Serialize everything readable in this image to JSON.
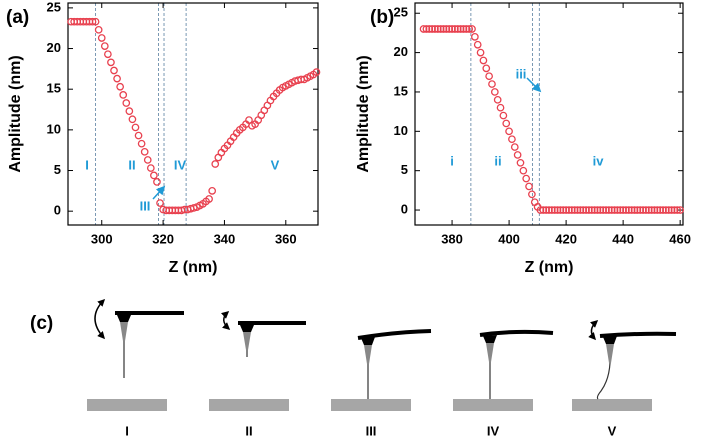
{
  "chart_data": [
    {
      "type": "scatter",
      "panel": "(a)",
      "x_label": "Z (nm)",
      "y_label": "Amplitude (nm)",
      "color": "#e8414f",
      "x": [
        290,
        291,
        292,
        293,
        294,
        295,
        296,
        297,
        298,
        299,
        300,
        301,
        302,
        303,
        304,
        305,
        306,
        307,
        308,
        309,
        310,
        311,
        312,
        313,
        314,
        315,
        316,
        317,
        318,
        319,
        320,
        321,
        322,
        323,
        324,
        325,
        326,
        327,
        328,
        329,
        330,
        331,
        332,
        333,
        334,
        335,
        336,
        337,
        338,
        339,
        340,
        341,
        342,
        343,
        344,
        345,
        346,
        347,
        348,
        349,
        350,
        351,
        352,
        353,
        354,
        355,
        356,
        357,
        358,
        359,
        360,
        361,
        362,
        363,
        364,
        365,
        366,
        367,
        368,
        369,
        370
      ],
      "values": [
        23.3,
        23.3,
        23.3,
        23.3,
        23.3,
        23.3,
        23.3,
        23.3,
        23.3,
        22.3,
        21.3,
        20.3,
        19.3,
        18.3,
        17.3,
        16.3,
        15.3,
        14.3,
        13.3,
        12.3,
        11.3,
        10.3,
        9.3,
        8.3,
        7.3,
        6.3,
        5.3,
        4.4,
        3.6,
        1.0,
        0.2,
        0.1,
        0.1,
        0.1,
        0.1,
        0.1,
        0.1,
        0.2,
        0.2,
        0.3,
        0.4,
        0.5,
        0.7,
        0.9,
        1.2,
        1.5,
        2.5,
        5.8,
        6.6,
        7.2,
        7.7,
        8.1,
        8.6,
        9.1,
        9.6,
        10.0,
        10.3,
        10.7,
        11.2,
        10.5,
        10.7,
        11.2,
        11.8,
        12.4,
        13.0,
        13.6,
        14.1,
        14.5,
        14.9,
        15.2,
        15.4,
        15.6,
        15.8,
        16.0,
        16.1,
        16.2,
        16.2,
        16.4,
        16.6,
        16.8,
        17.1
      ],
      "xlim": [
        289,
        370.5
      ],
      "ylim": [
        -1.7,
        25.6
      ],
      "xticks": [
        300,
        320,
        340,
        360
      ],
      "yticks": [
        0,
        5,
        10,
        15,
        20,
        25
      ],
      "vlines": [
        298,
        318.5,
        320.3,
        327.5
      ],
      "region_labels": [
        "I",
        "II",
        "III",
        "IV",
        "V"
      ]
    },
    {
      "type": "scatter",
      "panel": "(b)",
      "x_label": "Z (nm)",
      "y_label": "Amplitude (nm)",
      "color": "#e8414f",
      "x": [
        370,
        371,
        372,
        373,
        374,
        375,
        376,
        377,
        378,
        379,
        380,
        381,
        382,
        383,
        384,
        385,
        386,
        387,
        388,
        389,
        390,
        391,
        392,
        393,
        394,
        395,
        396,
        397,
        398,
        399,
        400,
        401,
        402,
        403,
        404,
        405,
        406,
        407,
        408,
        409,
        410,
        411,
        412,
        413,
        414,
        415,
        416,
        417,
        418,
        419,
        420,
        421,
        422,
        423,
        424,
        425,
        426,
        427,
        428,
        429,
        430,
        431,
        432,
        433,
        434,
        435,
        436,
        437,
        438,
        439,
        440,
        441,
        442,
        443,
        444,
        445,
        446,
        447,
        448,
        449,
        450,
        451,
        452,
        453,
        454,
        455,
        456,
        457,
        458,
        459,
        460
      ],
      "values": [
        23.0,
        23.0,
        23.0,
        23.0,
        23.0,
        23.0,
        23.0,
        23.0,
        23.0,
        23.0,
        23.0,
        23.0,
        23.0,
        23.0,
        23.0,
        23.0,
        23.0,
        23.0,
        22.0,
        21.0,
        20.0,
        19.0,
        18.0,
        17.0,
        16.0,
        15.0,
        14.0,
        13.0,
        12.0,
        11.0,
        10.0,
        9.0,
        8.0,
        7.0,
        6.0,
        5.0,
        4.0,
        3.0,
        2.0,
        1.0,
        0.4,
        0,
        0,
        0,
        0,
        0,
        0,
        0,
        0,
        0,
        0,
        0,
        0,
        0,
        0,
        0,
        0,
        0,
        0,
        0,
        0,
        0,
        0,
        0,
        0,
        0,
        0,
        0,
        0,
        0,
        0,
        0,
        0,
        0,
        0,
        0,
        0,
        0,
        0,
        0,
        0,
        0,
        0,
        0,
        0,
        0,
        0,
        0,
        0,
        0,
        0
      ],
      "xlim": [
        367,
        461
      ],
      "ylim": [
        -1.9,
        26.3
      ],
      "xticks": [
        380,
        400,
        420,
        440,
        460
      ],
      "yticks": [
        0,
        5,
        10,
        15,
        20,
        25
      ],
      "vlines": [
        386.6,
        408.2,
        410.6
      ],
      "region_labels": [
        "i",
        "ii",
        "iii",
        "iv"
      ]
    }
  ],
  "diagram": {
    "panel": "(c)",
    "labels": [
      "I",
      "II",
      "III",
      "IV",
      "V"
    ]
  }
}
